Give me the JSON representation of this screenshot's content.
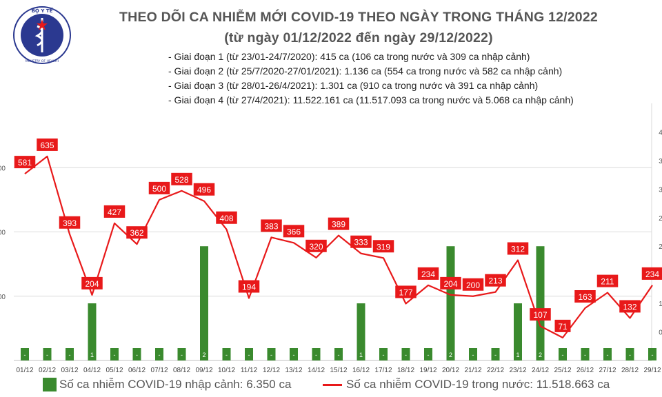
{
  "header": {
    "logo_top_text": "BỘ Y TẾ",
    "logo_bottom_text": "MINISTRY OF HEALTH",
    "title": "THEO DÕI CA NHIỄM MỚI COVID-19 THEO NGÀY TRONG THÁNG 12/2022",
    "subtitle": "(từ ngày 01/12/2022 đến ngày 29/12/2022)"
  },
  "stages": [
    "- Giai đoạn 1 (từ 23/01-24/7/2020): 415 ca (106 ca trong nước và 309 ca nhập cảnh)",
    "- Giai đoạn 2 (từ 25/7/2020-27/01/2021): 1.136 ca (554 ca trong nước và 582 ca nhập cảnh)",
    "- Giai đoạn 3 (từ 28/01-26/4/2021): 1.301 ca (910 ca trong nước và 391 ca nhập cảnh)",
    "- Giai đoạn 4 (từ 27/4/2021): 11.522.161 ca (11.517.093 ca trong nước và 5.068 ca nhập cảnh)"
  ],
  "legend": {
    "bars": "Số ca nhiễm COVID-19 nhập cảnh: 6.350 ca",
    "line": "Số ca nhiễm COVID-19 trong nước: 11.518.663 ca"
  },
  "colors": {
    "bar": "#3a8a2e",
    "line": "#e8191a",
    "label_bg": "#e8191a",
    "label_text": "#ffffff",
    "bar_label": "#ffffff",
    "grid": "#d9d9d9"
  },
  "chart_data": {
    "type": "bar+line",
    "categories": [
      "01/12",
      "02/12",
      "03/12",
      "04/12",
      "05/12",
      "06/12",
      "07/12",
      "08/12",
      "09/12",
      "10/12",
      "11/12",
      "12/12",
      "13/12",
      "14/12",
      "15/12",
      "16/12",
      "17/12",
      "18/12",
      "19/12",
      "20/12",
      "21/12",
      "22/12",
      "23/12",
      "24/12",
      "25/12",
      "26/12",
      "27/12",
      "28/12",
      "29/12"
    ],
    "series": [
      {
        "name": "Số ca nhiễm COVID-19 nhập cảnh",
        "type": "bar",
        "values": [
          0,
          0,
          0,
          1,
          0,
          0,
          0,
          0,
          2,
          0,
          0,
          0,
          0,
          0,
          0,
          1,
          0,
          0,
          0,
          2,
          0,
          0,
          1,
          2,
          0,
          0,
          0,
          0,
          0
        ],
        "labels": [
          "-",
          "-",
          "-",
          "1",
          "-",
          "-",
          "-",
          "-",
          "2",
          "-",
          "-",
          "-",
          "-",
          "-",
          "-",
          "1",
          "-",
          "-",
          "-",
          "2",
          "-",
          "-",
          "1",
          "2",
          "-",
          "-",
          "-",
          "-",
          "-"
        ]
      },
      {
        "name": "Số ca nhiễm COVID-19 trong nước",
        "type": "line",
        "values": [
          581,
          635,
          393,
          204,
          427,
          362,
          500,
          528,
          496,
          408,
          194,
          383,
          366,
          320,
          389,
          333,
          319,
          177,
          234,
          204,
          200,
          213,
          312,
          107,
          71,
          163,
          211,
          132,
          234
        ]
      }
    ],
    "left_axis": {
      "range": [
        0,
        800
      ],
      "tick_labels": [
        "00",
        "00",
        "00"
      ]
    },
    "right_axis": {
      "range": [
        0,
        4.5
      ],
      "tick_labels": [
        "4",
        "3",
        "3",
        "2",
        "2",
        "1",
        "1",
        "0"
      ]
    },
    "grid": true
  }
}
